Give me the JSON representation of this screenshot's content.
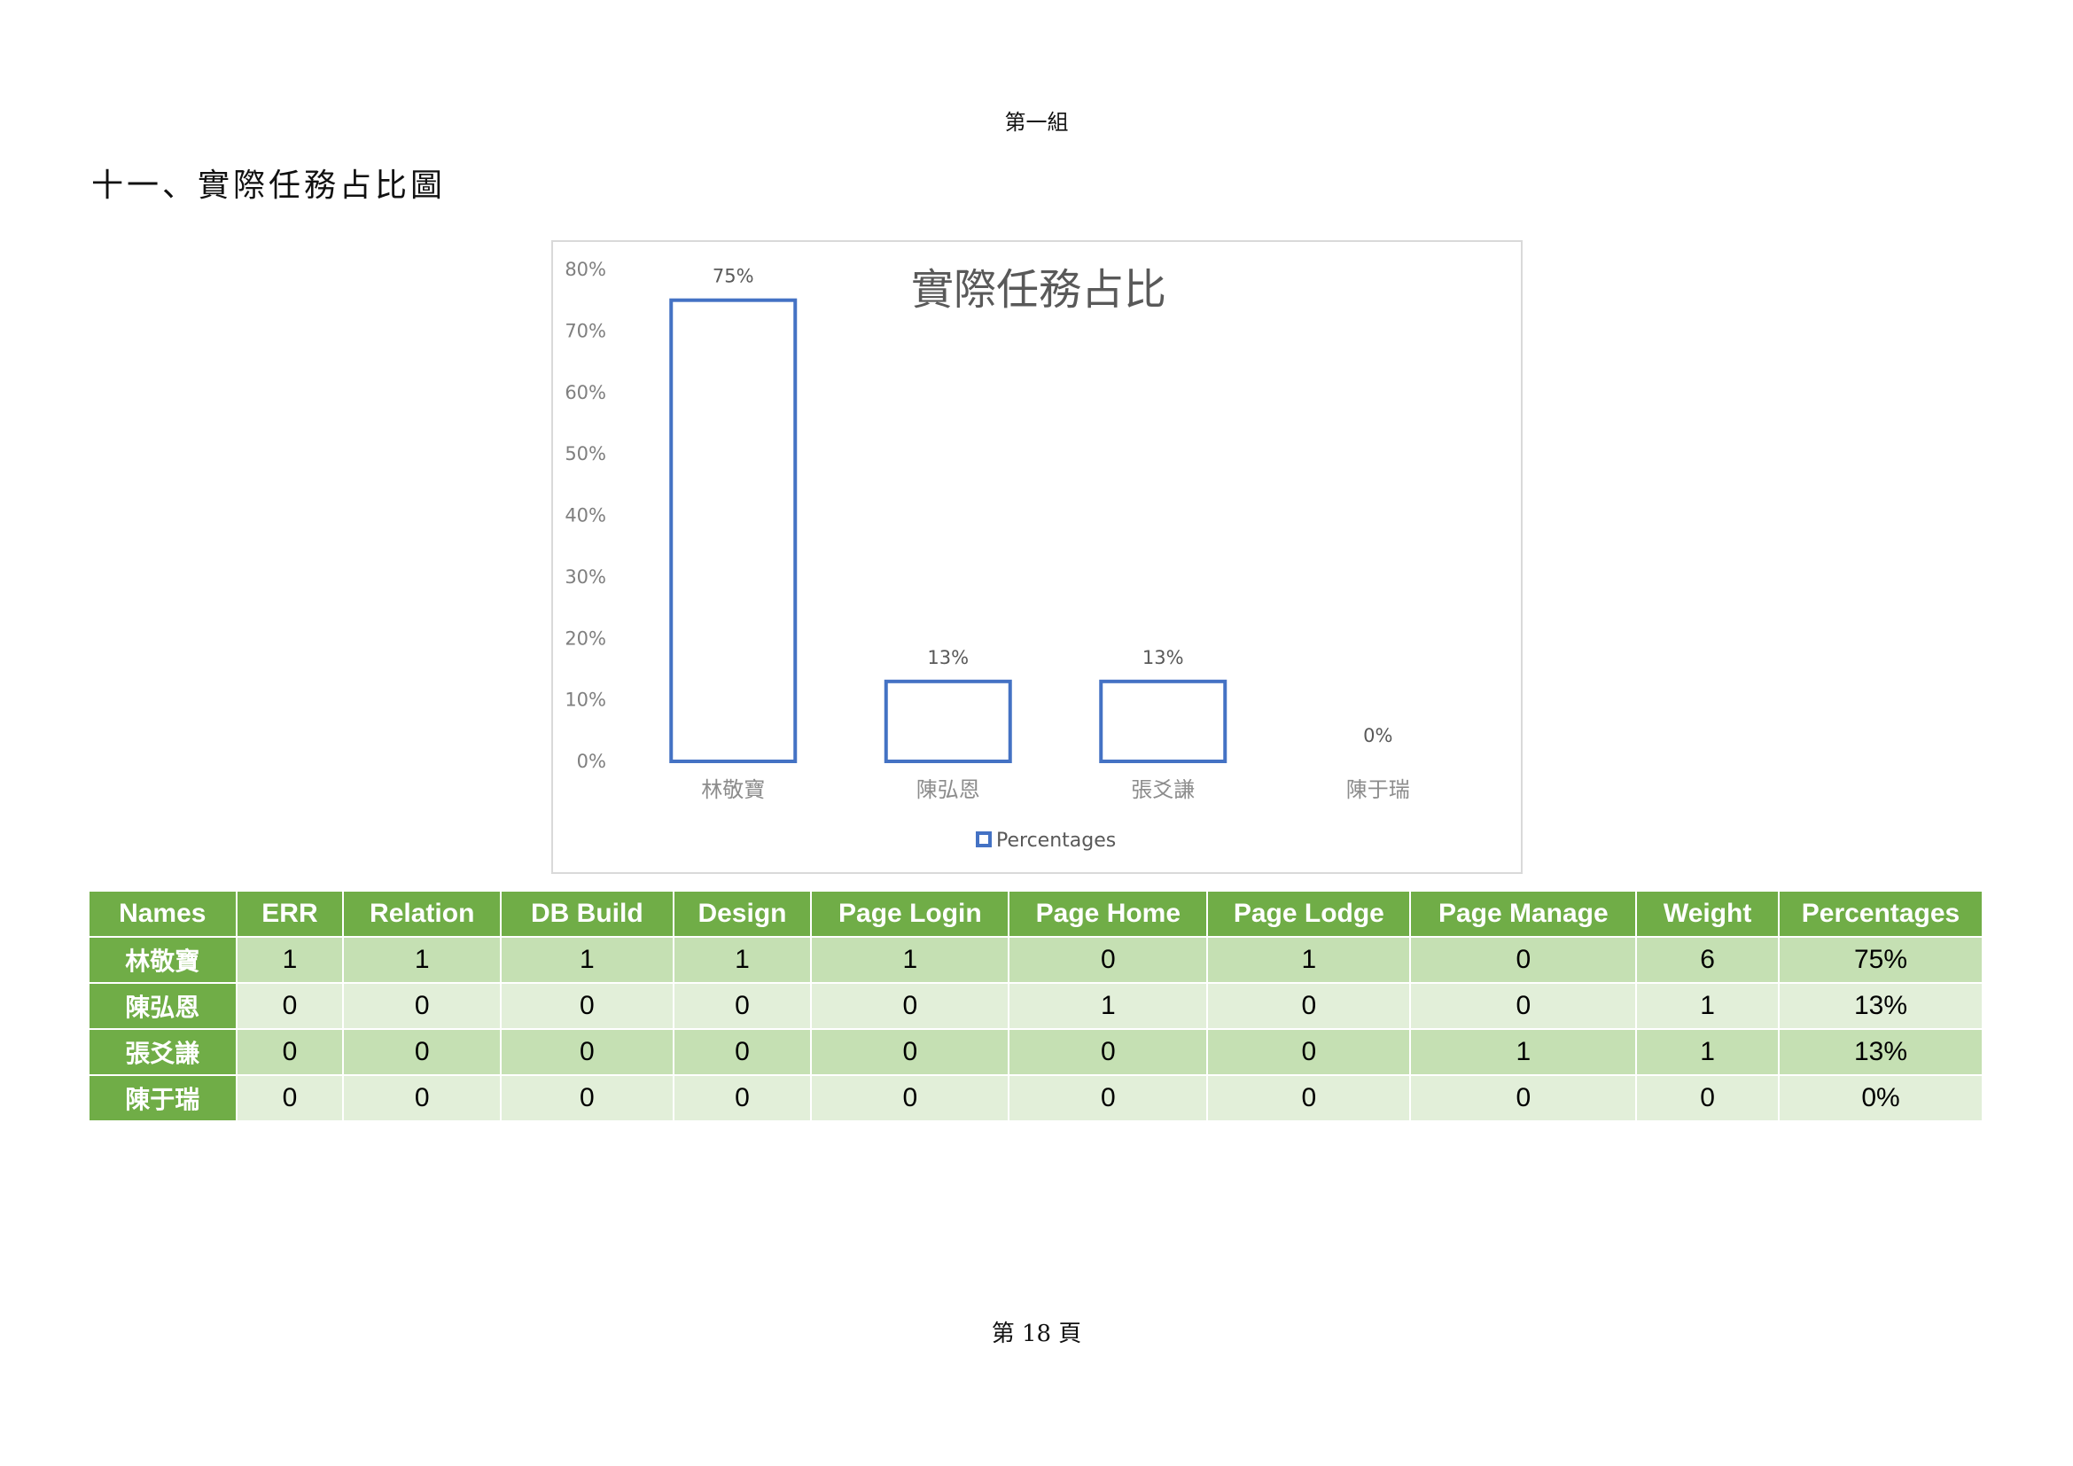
{
  "header": {
    "text": "第一組"
  },
  "section": {
    "title": "十一、實際任務占比圖"
  },
  "chart_data": {
    "type": "bar",
    "title": "實際任務占比",
    "categories": [
      "林敬寶",
      "陳弘恩",
      "張爻謙",
      "陳于瑞"
    ],
    "series": [
      {
        "name": "Percentages",
        "values": [
          75,
          13,
          13,
          0
        ],
        "labels": [
          "75%",
          "13%",
          "13%",
          "0%"
        ]
      }
    ],
    "ylim": [
      0,
      80
    ],
    "yticks": [
      0,
      10,
      20,
      30,
      40,
      50,
      60,
      70,
      80
    ],
    "ytick_labels": [
      "0%",
      "10%",
      "20%",
      "30%",
      "40%",
      "50%",
      "60%",
      "70%",
      "80%"
    ],
    "legend": "bottom",
    "grid": false,
    "bar_style": "outline",
    "color": "#4472c4"
  },
  "table": {
    "headers": [
      "Names",
      "ERR",
      "Relation",
      "DB Build",
      "Design",
      "Page Login",
      "Page Home",
      "Page Lodge",
      "Page Manage",
      "Weight",
      "Percentages"
    ],
    "rows": [
      [
        "林敬寶",
        "1",
        "1",
        "1",
        "1",
        "1",
        "0",
        "1",
        "0",
        "6",
        "75%"
      ],
      [
        "陳弘恩",
        "0",
        "0",
        "0",
        "0",
        "0",
        "1",
        "0",
        "0",
        "1",
        "13%"
      ],
      [
        "張爻謙",
        "0",
        "0",
        "0",
        "0",
        "0",
        "0",
        "0",
        "1",
        "1",
        "13%"
      ],
      [
        "陳于瑞",
        "0",
        "0",
        "0",
        "0",
        "0",
        "0",
        "0",
        "0",
        "0",
        "0%"
      ]
    ],
    "colors": {
      "header": "#70ad47",
      "row_dark": "#c5e0b3",
      "row_light": "#e2efd9"
    }
  },
  "footer": {
    "text": "第 18 頁"
  }
}
